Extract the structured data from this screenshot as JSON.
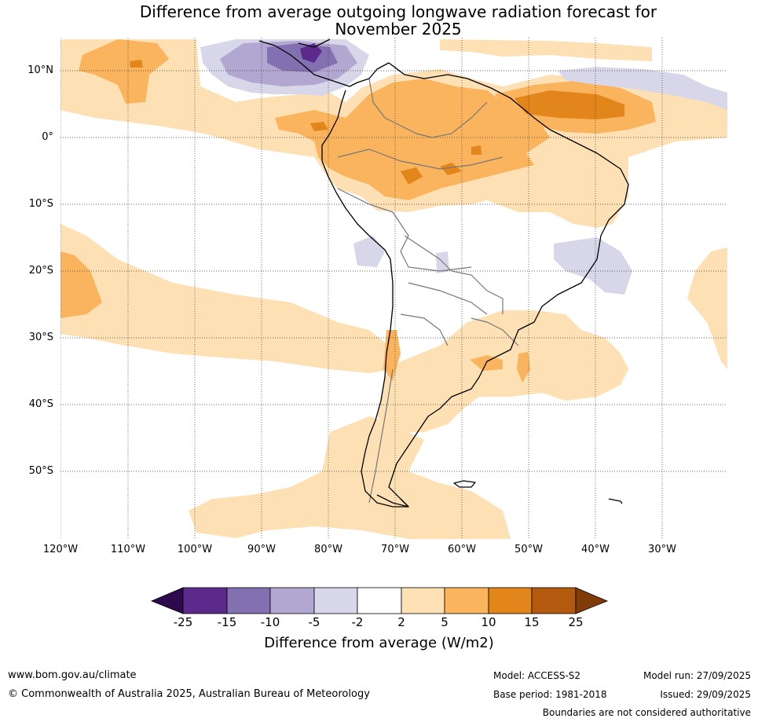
{
  "title_line1": "Difference from average outgoing longwave radiation forecast for",
  "title_line2": "November 2025",
  "lat_labels": [
    "10°N",
    "0°",
    "10°S",
    "20°S",
    "30°S",
    "40°S",
    "50°S"
  ],
  "lon_labels": [
    "120°W",
    "110°W",
    "100°W",
    "90°W",
    "80°W",
    "70°W",
    "60°W",
    "50°W",
    "40°W",
    "30°W"
  ],
  "colorbar": {
    "ticks": [
      "-25",
      "-15",
      "-10",
      "-5",
      "-2",
      "2",
      "5",
      "10",
      "15",
      "25"
    ],
    "colors": {
      "below_min": "#2d0a4e",
      "b1": "#5b2a8c",
      "b2": "#8270b0",
      "b3": "#b2a7d0",
      "b4": "#d8d7ea",
      "b5": "#ffffff",
      "b6": "#fde0b4",
      "b7": "#fbb45e",
      "b8": "#e2851b",
      "b9": "#b35a0e",
      "above_max": "#7f3b08"
    },
    "label": "Difference from average (W/m2)"
  },
  "footer": {
    "url": "www.bom.gov.au/climate",
    "copyright": "© Commonwealth of Australia 2025, Australian Bureau of Meteorology",
    "model": "Model: ACCESS-S2",
    "model_run": "Model run: 27/09/2025",
    "base_period": "Base period: 1981-2018",
    "issued": "Issued: 29/09/2025",
    "disclaimer": "Boundaries are not considered authoritative"
  }
}
